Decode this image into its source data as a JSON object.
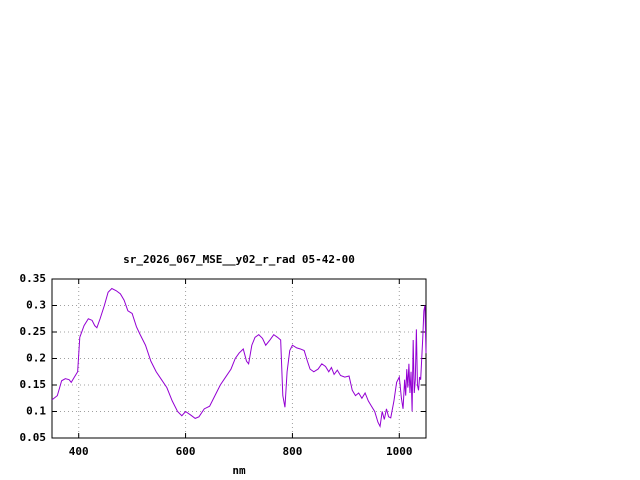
{
  "chart_data": {
    "type": "line",
    "title": "sr_2026_067_MSE__y02_r_rad 05-42-00",
    "x_label": "nm",
    "x": [
      350,
      360,
      368,
      375,
      382,
      386,
      392,
      398,
      402,
      410,
      418,
      425,
      430,
      434,
      440,
      448,
      455,
      462,
      470,
      478,
      485,
      492,
      500,
      508,
      515,
      525,
      535,
      545,
      555,
      565,
      575,
      585,
      593,
      600,
      610,
      618,
      625,
      635,
      645,
      655,
      665,
      675,
      685,
      693,
      700,
      708,
      714,
      718,
      724,
      730,
      737,
      744,
      750,
      758,
      765,
      772,
      778,
      782,
      786,
      790,
      795,
      800,
      808,
      815,
      822,
      828,
      833,
      840,
      848,
      855,
      862,
      868,
      873,
      878,
      884,
      890,
      898,
      906,
      912,
      918,
      924,
      930,
      936,
      942,
      948,
      954,
      960,
      964,
      968,
      972,
      976,
      980,
      984,
      990,
      995,
      1000,
      1004,
      1007,
      1010,
      1012,
      1014,
      1016,
      1018,
      1020,
      1022,
      1024,
      1026,
      1028,
      1030,
      1032,
      1034,
      1036,
      1038,
      1040,
      1042,
      1044,
      1046,
      1048,
      1050
    ],
    "series": [
      {
        "color": "#9400d3",
        "values": [
          0.122,
          0.13,
          0.158,
          0.162,
          0.16,
          0.155,
          0.165,
          0.175,
          0.24,
          0.262,
          0.275,
          0.272,
          0.262,
          0.258,
          0.275,
          0.3,
          0.325,
          0.332,
          0.328,
          0.322,
          0.31,
          0.29,
          0.285,
          0.26,
          0.245,
          0.225,
          0.195,
          0.175,
          0.16,
          0.145,
          0.12,
          0.1,
          0.092,
          0.1,
          0.093,
          0.087,
          0.09,
          0.105,
          0.11,
          0.13,
          0.15,
          0.165,
          0.18,
          0.2,
          0.21,
          0.218,
          0.195,
          0.19,
          0.225,
          0.24,
          0.245,
          0.238,
          0.225,
          0.235,
          0.245,
          0.24,
          0.235,
          0.13,
          0.108,
          0.175,
          0.215,
          0.225,
          0.22,
          0.218,
          0.215,
          0.195,
          0.18,
          0.175,
          0.18,
          0.19,
          0.185,
          0.175,
          0.183,
          0.17,
          0.178,
          0.168,
          0.165,
          0.167,
          0.14,
          0.13,
          0.135,
          0.125,
          0.135,
          0.12,
          0.11,
          0.1,
          0.08,
          0.072,
          0.1,
          0.085,
          0.105,
          0.09,
          0.088,
          0.12,
          0.155,
          0.165,
          0.125,
          0.105,
          0.16,
          0.13,
          0.18,
          0.145,
          0.19,
          0.135,
          0.175,
          0.1,
          0.235,
          0.135,
          0.16,
          0.255,
          0.15,
          0.14,
          0.165,
          0.16,
          0.2,
          0.24,
          0.29,
          0.3,
          0.21
        ]
      }
    ],
    "xlim": [
      350,
      1050
    ],
    "ylim": [
      0.05,
      0.35
    ],
    "xticks": [
      400,
      600,
      800,
      1000
    ],
    "yticks": [
      0.05,
      0.1,
      0.15,
      0.2,
      0.25,
      0.3,
      0.35
    ],
    "grid": true
  }
}
